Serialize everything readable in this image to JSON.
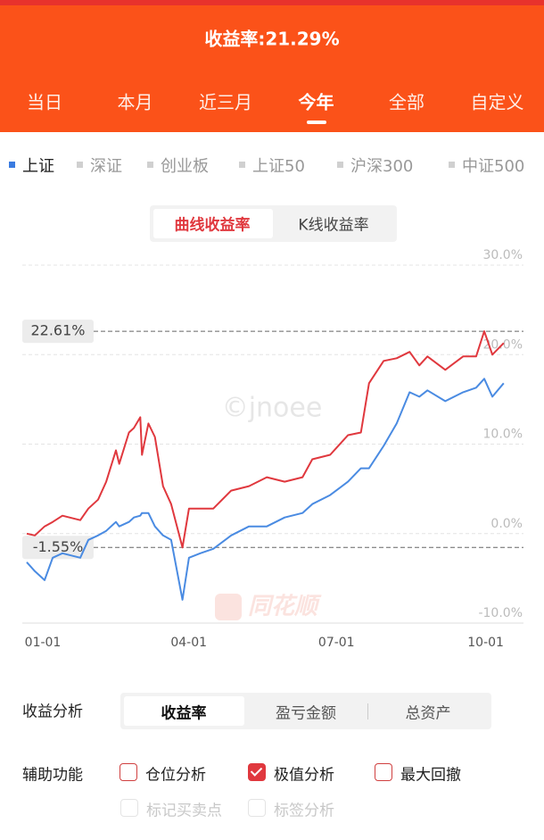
{
  "header": {
    "title": "收益率:21.29%",
    "tabs": [
      {
        "label": "当日",
        "active": false
      },
      {
        "label": "本月",
        "active": false
      },
      {
        "label": "近三月",
        "active": false
      },
      {
        "label": "今年",
        "active": true
      },
      {
        "label": "全部",
        "active": false
      },
      {
        "label": "自定义",
        "active": false
      }
    ]
  },
  "benchmarks": [
    {
      "label": "上证",
      "active": true
    },
    {
      "label": "深证",
      "active": false
    },
    {
      "label": "创业板",
      "active": false
    },
    {
      "label": "上证50",
      "active": false
    },
    {
      "label": "沪深300",
      "active": false
    },
    {
      "label": "中证500",
      "active": false
    }
  ],
  "chart_modes": [
    {
      "label": "曲线收益率",
      "active": true
    },
    {
      "label": "K线收益率",
      "active": false
    }
  ],
  "chart_data": {
    "type": "line",
    "x": [
      "01-01",
      "01-06",
      "01-12",
      "01-17",
      "01-23",
      "02-03",
      "02-08",
      "02-14",
      "02-19",
      "02-25",
      "02-27",
      "03-05",
      "03-08",
      "03-12",
      "03-13",
      "03-17",
      "03-21",
      "03-26",
      "03-31",
      "04-07",
      "04-11",
      "04-18",
      "04-26",
      "05-07",
      "05-18",
      "05-29",
      "06-09",
      "06-20",
      "06-26",
      "07-07",
      "07-18",
      "07-26",
      "07-31",
      "08-09",
      "08-17",
      "08-25",
      "08-31",
      "09-05",
      "09-16",
      "09-27",
      "10-05",
      "10-10",
      "10-15",
      "10-22"
    ],
    "series": [
      {
        "color": "#e0383e",
        "values": [
          0,
          -0.2,
          0.8,
          1.3,
          2,
          1.5,
          2.8,
          3.8,
          5.8,
          9.3,
          7.8,
          11.3,
          11.8,
          13,
          8.8,
          12.3,
          10.8,
          5.3,
          3.3,
          -1.55,
          2.8,
          2.8,
          2.8,
          4.8,
          5.3,
          6.3,
          5.8,
          6.3,
          8.3,
          8.8,
          11,
          11.3,
          16.8,
          19.3,
          19.6,
          20.3,
          18.8,
          19.8,
          18.3,
          19.8,
          19.8,
          22.61,
          20,
          21.29
        ]
      },
      {
        "color": "#4a8be2",
        "values": [
          -3.2,
          -4.2,
          -5.2,
          -2.7,
          -2.2,
          -2.7,
          -0.7,
          -0.2,
          0.3,
          1.3,
          0.8,
          1.3,
          1.8,
          2,
          2.3,
          2.3,
          0.8,
          -0.2,
          -0.7,
          -7.4,
          -2.7,
          -2.2,
          -1.7,
          -0.2,
          0.8,
          0.8,
          1.8,
          2.3,
          3.3,
          4.3,
          5.8,
          7.3,
          7.3,
          9.8,
          12.3,
          15.8,
          15.3,
          16,
          14.8,
          15.8,
          16.3,
          17.3,
          15.3,
          16.8
        ]
      }
    ],
    "xlim": [
      "01-01",
      "11-01"
    ],
    "xticks": [
      "01-01",
      "04-01",
      "07-01",
      "10-01"
    ],
    "ylim": [
      -10,
      30
    ],
    "yticks": [
      {
        "value": -10,
        "label": "-10.0%"
      },
      {
        "value": 0,
        "label": "0.0%"
      },
      {
        "value": 10,
        "label": "10.0%"
      },
      {
        "value": 20,
        "label": "20.0%"
      },
      {
        "value": 30,
        "label": "30.0%"
      }
    ],
    "grid": true,
    "annotations": [
      {
        "value": 22.61,
        "label": "22.61%"
      },
      {
        "value": -1.55,
        "label": "-1.55%"
      }
    ],
    "watermarks": [
      "©jnoee",
      "同花顺"
    ]
  },
  "analysis": {
    "label": "收益分析",
    "options": [
      {
        "label": "收益率",
        "active": true
      },
      {
        "label": "盈亏金额",
        "active": false
      },
      {
        "label": "总资产",
        "active": false
      }
    ]
  },
  "assist": {
    "label": "辅助功能",
    "options": [
      {
        "label": "仓位分析",
        "checked": false,
        "enabled": true
      },
      {
        "label": "极值分析",
        "checked": true,
        "enabled": true
      },
      {
        "label": "最大回撤",
        "checked": false,
        "enabled": true
      },
      {
        "label": "标记买卖点",
        "checked": false,
        "enabled": false
      },
      {
        "label": "标签分析",
        "checked": false,
        "enabled": false
      }
    ]
  }
}
